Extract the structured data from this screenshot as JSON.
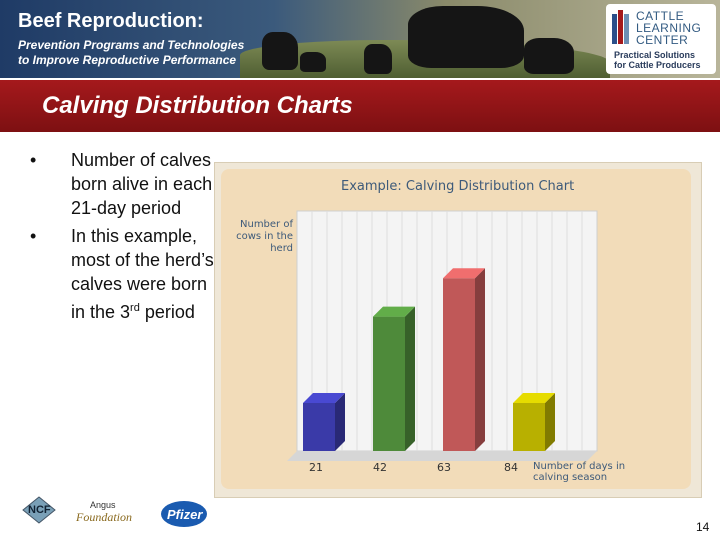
{
  "banner": {
    "title": "Beef Reproduction:",
    "subtitle_line1": "Prevention Programs and Technologies",
    "subtitle_line2": "to Improve Reproductive Performance",
    "logo_line1": "CATTLE",
    "logo_line2": "LEARNING",
    "logo_line3": "CENTER",
    "logo_tagline1": "Practical Solutions",
    "logo_tagline2": "for Cattle Producers"
  },
  "slide": {
    "title": "Calving Distribution Charts",
    "bullet1": "Number of calves born alive in each 21-day period",
    "bullet2_prefix": "In this example, most of the herd’s calves were born in the 3",
    "bullet2_sup": "rd",
    "bullet2_suffix": "period",
    "page_number": "14"
  },
  "chart_data": {
    "type": "bar",
    "title": "Example: Calving Distribution Chart",
    "ylabel": "Number of cows in the herd",
    "xlabel": "Number of days in calving season",
    "categories": [
      "21",
      "42",
      "63",
      "84"
    ],
    "values": [
      2,
      5.6,
      7.2,
      2
    ],
    "ylim": [
      0,
      10
    ],
    "grid": true,
    "colors": [
      "#3a3aa8",
      "#4e8a3a",
      "#c05858",
      "#b8b000"
    ]
  },
  "footer": {
    "logo1": "NCF",
    "logo2_top": "Angus",
    "logo2_bottom": "Foundation",
    "logo3": "Pfizer"
  }
}
